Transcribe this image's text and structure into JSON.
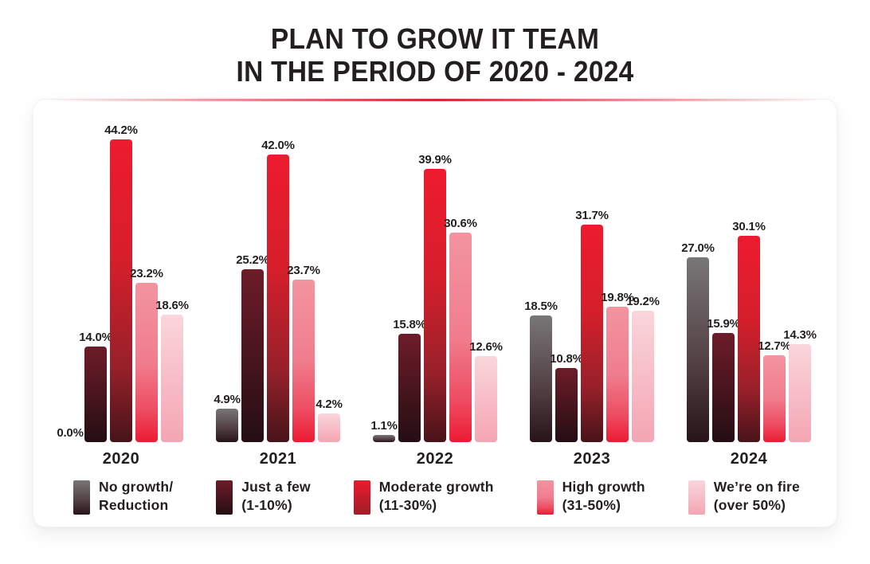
{
  "title": {
    "line1": "PLAN TO GROW IT TEAM",
    "line2": "IN THE PERIOD OF 2020 - 2024"
  },
  "colors": {
    "accent_red": "#D82630",
    "text_dark": "#231F20",
    "card_background": "#FFFFFF",
    "card_border": "#F7F1F2"
  },
  "chart_data": {
    "type": "bar",
    "title": "PLAN TO GROW IT TEAM IN THE PERIOD OF 2020 - 2024",
    "categories": [
      "2020",
      "2021",
      "2022",
      "2023",
      "2024"
    ],
    "unit": "%",
    "ylim": [
      0,
      46
    ],
    "grid": false,
    "axes_shown": false,
    "value_labels_shown": true,
    "legend_position": "bottom",
    "series": [
      {
        "id": "no-growth",
        "name": "No growth/Reduction",
        "legend_label_lines": [
          "No growth/",
          "Reduction"
        ],
        "values": [
          0.0,
          4.9,
          1.1,
          18.5,
          27.0
        ],
        "gradient": [
          "#787678",
          "#544246 55%",
          "#261419"
        ]
      },
      {
        "id": "just-a-few",
        "name": "Just a few (1-10%)",
        "legend_label_lines": [
          "Just a few",
          "(1-10%)"
        ],
        "values": [
          14.0,
          25.2,
          15.8,
          10.8,
          15.9
        ],
        "gradient": [
          "#6E1C29",
          "#240E13"
        ]
      },
      {
        "id": "moderate-growth",
        "name": "Moderate growth (11-30%)",
        "legend_label_lines": [
          "Moderate growth",
          "(11-30%)"
        ],
        "values": [
          44.2,
          42.0,
          39.9,
          31.7,
          30.1
        ],
        "gradient": [
          "#ED1B2D",
          "#D51F2B 40%",
          "#97202A 75%",
          "#471419"
        ],
        "legend_gradient": [
          "#ED1B2D",
          "#9C1E28"
        ]
      },
      {
        "id": "high-growth",
        "name": "High growth (31-50%)",
        "legend_label_lines": [
          "High growth",
          "(31-50%)"
        ],
        "values": [
          23.2,
          23.7,
          30.6,
          19.8,
          12.7
        ],
        "gradient": [
          "#F394A0",
          "#F07D8D 50%",
          "#EE4C62 80%",
          "#EC1B33"
        ]
      },
      {
        "id": "on-fire",
        "name": "We’re on fire (over 50%)",
        "legend_label_lines": [
          "We’re on fire",
          "(over 50%)"
        ],
        "values": [
          18.6,
          4.2,
          12.6,
          19.2,
          14.3
        ],
        "gradient": [
          "#FAD6DC",
          "#F4A5B3"
        ]
      }
    ]
  }
}
